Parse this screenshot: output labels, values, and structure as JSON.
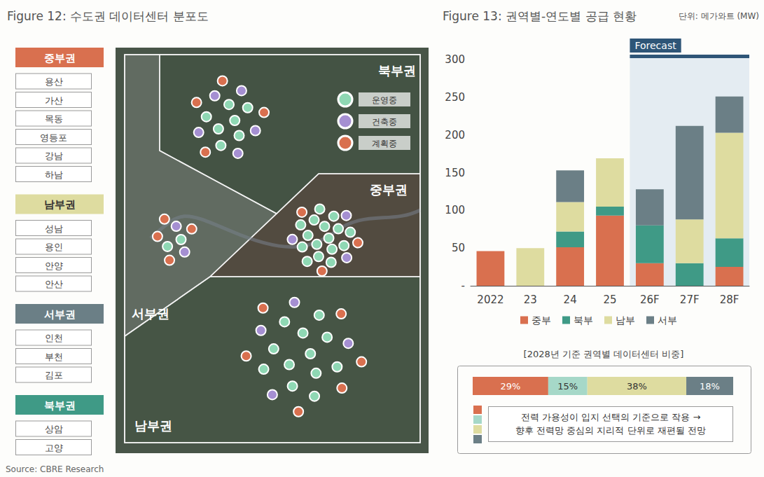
{
  "figure12": {
    "title": "Figure 12: 수도권 데이터센터 분포도",
    "regions": [
      {
        "name": "중부권",
        "color": "#d9704f",
        "areas": [
          "용산",
          "가산",
          "목동",
          "영등포",
          "강남",
          "하남"
        ]
      },
      {
        "name": "남부권",
        "color": "#dedca0",
        "areas": [
          "성남",
          "용인",
          "안양",
          "안산"
        ]
      },
      {
        "name": "서부권",
        "color": "#6b7f86",
        "areas": [
          "인천",
          "부천",
          "김포"
        ]
      },
      {
        "name": "북부권",
        "color": "#3f9a86",
        "areas": [
          "상암",
          "고양"
        ]
      }
    ],
    "status_legend": [
      {
        "label": "운영중",
        "color": "#8fd8b4"
      },
      {
        "label": "건축중",
        "color": "#a58fd2"
      },
      {
        "label": "계획중",
        "color": "#d9704f"
      }
    ],
    "facilities": [
      {
        "region": "중부권",
        "status": "운영중",
        "count": 16
      },
      {
        "region": "중부권",
        "status": "건축중",
        "count": 3
      },
      {
        "region": "중부권",
        "status": "계획중",
        "count": 3
      },
      {
        "region": "남부권",
        "status": "운영중",
        "count": 12
      },
      {
        "region": "남부권",
        "status": "건축중",
        "count": 4
      },
      {
        "region": "남부권",
        "status": "계획중",
        "count": 6
      },
      {
        "region": "서부권",
        "status": "운영중",
        "count": 2
      },
      {
        "region": "서부권",
        "status": "건축중",
        "count": 2
      },
      {
        "region": "서부권",
        "status": "계획중",
        "count": 4
      },
      {
        "region": "북부권",
        "status": "운영중",
        "count": 7
      },
      {
        "region": "북부권",
        "status": "건축중",
        "count": 5
      },
      {
        "region": "북부권",
        "status": "계획중",
        "count": 4
      }
    ]
  },
  "chart_data": [
    {
      "type": "bar",
      "title": "Figure 13: 권역별-연도별 공급 현황",
      "unit": "단위: 메가와트 (MW)",
      "categories": [
        "2022",
        "23",
        "24",
        "25",
        "26F",
        "27F",
        "28F"
      ],
      "series": [
        {
          "name": "중부",
          "color": "#d9704f",
          "values": [
            46,
            null,
            51,
            93,
            30,
            null,
            25
          ]
        },
        {
          "name": "북부",
          "color": "#3f9a86",
          "values": [
            null,
            null,
            21,
            12,
            50,
            30,
            38
          ]
        },
        {
          "name": "남부",
          "color": "#dedca0",
          "values": [
            null,
            50,
            39,
            64,
            null,
            58,
            140
          ]
        },
        {
          "name": "서부",
          "color": "#6b7f86",
          "values": [
            null,
            null,
            42,
            null,
            48,
            124,
            48
          ]
        }
      ],
      "stacked": true,
      "ylim": [
        0,
        300
      ],
      "yticks": [
        {
          "value": 0,
          "label": "-"
        },
        50,
        100,
        150,
        200,
        250,
        300
      ],
      "grid": false,
      "legend": "bottom",
      "forecast": {
        "label": "Forecast",
        "from": "26F",
        "to": "28F"
      }
    },
    {
      "type": "bar",
      "orientation": "horizontal",
      "stacked": true,
      "title": "[2028년 기준 권역별 데이터센터 비중]",
      "categories": [
        null
      ],
      "series": [
        {
          "color": "#d9704f",
          "values": [
            29
          ],
          "value_labels": [
            "29%"
          ]
        },
        {
          "color": "#a6d8c8",
          "values": [
            15
          ],
          "value_labels": [
            "15%"
          ]
        },
        {
          "color": "#dedca0",
          "values": [
            38
          ],
          "value_labels": [
            "38%"
          ]
        },
        {
          "color": "#6b7f86",
          "values": [
            18
          ],
          "value_labels": [
            "18%"
          ]
        }
      ],
      "xlim": [
        0,
        100
      ],
      "tick_labels": false,
      "data_labels": true,
      "grid": false,
      "note": [
        "전력 가용성이 입지 선택의 기준으로 작용 →",
        "향후 전력망 중심의 지리적 단위로 재편될 전망"
      ]
    }
  ],
  "source": "Source: CBRE Research"
}
